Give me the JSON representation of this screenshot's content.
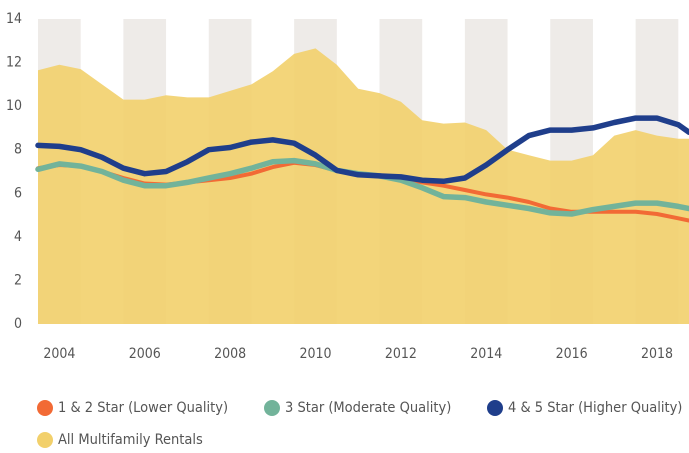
{
  "chart_data": {
    "type": "line",
    "x": [
      2003.5,
      2004,
      2004.5,
      2005,
      2005.5,
      2006,
      2006.5,
      2007,
      2007.5,
      2008,
      2008.5,
      2009,
      2009.5,
      2010,
      2010.5,
      2011,
      2011.5,
      2012,
      2012.5,
      2013,
      2013.5,
      2014,
      2014.5,
      2015,
      2015.5,
      2016,
      2016.5,
      2017,
      2017.5,
      2018,
      2018.5,
      2018.75
    ],
    "series": [
      {
        "name": "All Multifamily Rentals",
        "color": "#f2d06b",
        "style": "area",
        "values": [
          11.65,
          11.9,
          11.7,
          11.0,
          10.3,
          10.3,
          10.5,
          10.4,
          10.4,
          10.7,
          11.0,
          11.6,
          12.4,
          12.65,
          11.9,
          10.8,
          10.6,
          10.2,
          9.35,
          9.2,
          9.25,
          8.9,
          8.0,
          7.75,
          7.5,
          7.5,
          7.75,
          8.65,
          8.9,
          8.65,
          8.5,
          8.5
        ]
      },
      {
        "name": "1 & 2 Star (Lower Quality)",
        "color": "#f26a35",
        "style": "line",
        "values": [
          7.15,
          7.3,
          7.25,
          7.0,
          6.7,
          6.45,
          6.4,
          6.5,
          6.6,
          6.7,
          6.9,
          7.2,
          7.4,
          7.3,
          7.05,
          6.9,
          6.8,
          6.7,
          6.5,
          6.35,
          6.15,
          5.95,
          5.8,
          5.6,
          5.3,
          5.15,
          5.15,
          5.15,
          5.15,
          5.05,
          4.85,
          4.75
        ]
      },
      {
        "name": "3 Star (Moderate Quality)",
        "color": "#72b39a",
        "style": "line",
        "values": [
          7.1,
          7.35,
          7.25,
          7.0,
          6.6,
          6.35,
          6.35,
          6.5,
          6.7,
          6.9,
          7.15,
          7.45,
          7.5,
          7.35,
          7.05,
          6.9,
          6.8,
          6.6,
          6.25,
          5.85,
          5.8,
          5.6,
          5.45,
          5.3,
          5.1,
          5.05,
          5.25,
          5.4,
          5.55,
          5.55,
          5.4,
          5.3
        ]
      },
      {
        "name": "4 & 5 Star (Higher Quality)",
        "color": "#1f3e8b",
        "style": "line",
        "values": [
          8.2,
          8.15,
          8.0,
          7.65,
          7.15,
          6.9,
          7.0,
          7.45,
          8.0,
          8.1,
          8.35,
          8.45,
          8.3,
          7.75,
          7.05,
          6.85,
          6.8,
          6.75,
          6.6,
          6.55,
          6.7,
          7.3,
          8.0,
          8.65,
          8.9,
          8.9,
          9.0,
          9.25,
          9.45,
          9.45,
          9.15,
          8.8
        ]
      }
    ],
    "xlim": [
      2003.5,
      2018.75
    ],
    "xticks": [
      2004,
      2006,
      2008,
      2010,
      2012,
      2014,
      2016,
      2018
    ],
    "ylim": [
      0,
      14
    ],
    "yticks": [
      0,
      2,
      4,
      6,
      8,
      10,
      12,
      14
    ],
    "legend": "bottom"
  }
}
